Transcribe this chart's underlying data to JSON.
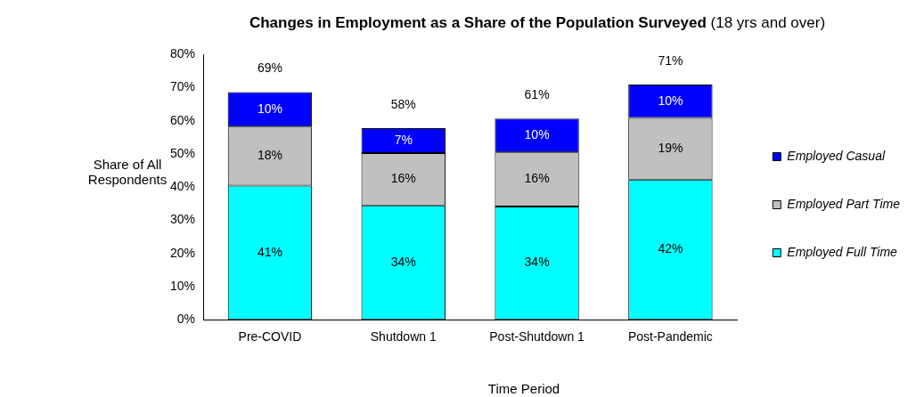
{
  "chart_data": {
    "type": "bar",
    "title": "Changes in Employment as a Share of the Population Surveyed (18 yrs and over)",
    "xlabel": "Time Period",
    "ylabel": "Share of All Respondents",
    "categories": [
      "Pre-COVID",
      "Shutdown 1",
      "Post-Shutdown 1",
      "Post-Pandemic"
    ],
    "stacked": true,
    "series": [
      {
        "name": "Employed Full Time",
        "color": "#00ffff",
        "values": [
          40.5,
          34.5,
          34.2,
          42.3
        ],
        "value_labels": [
          "41%",
          "34%",
          "34%",
          "42%"
        ]
      },
      {
        "name": "Employed Part Time",
        "color": "#c0c0c0",
        "values": [
          17.8,
          15.8,
          16.3,
          18.6
        ],
        "value_labels": [
          "18%",
          "16%",
          "16%",
          "19%"
        ]
      },
      {
        "name": "Employed Casual",
        "color": "#0000ff",
        "values": [
          10.4,
          7.5,
          10.2,
          10.1
        ],
        "value_labels": [
          "10%",
          "7%",
          "10%",
          "10%"
        ]
      }
    ],
    "totals": [
      "69%",
      "58%",
      "61%",
      "71%"
    ],
    "ylim": [
      0,
      80
    ],
    "yticks": [
      {
        "value": 0,
        "label": "0%"
      },
      {
        "value": 10,
        "label": "10%"
      },
      {
        "value": 20,
        "label": "20%"
      },
      {
        "value": 30,
        "label": "30%"
      },
      {
        "value": 40,
        "label": "40%"
      },
      {
        "value": 50,
        "label": "50%"
      },
      {
        "value": 60,
        "label": "60%"
      },
      {
        "value": 70,
        "label": "70%"
      },
      {
        "value": 80,
        "label": "80%"
      }
    ],
    "grid": false,
    "legend": "right"
  }
}
